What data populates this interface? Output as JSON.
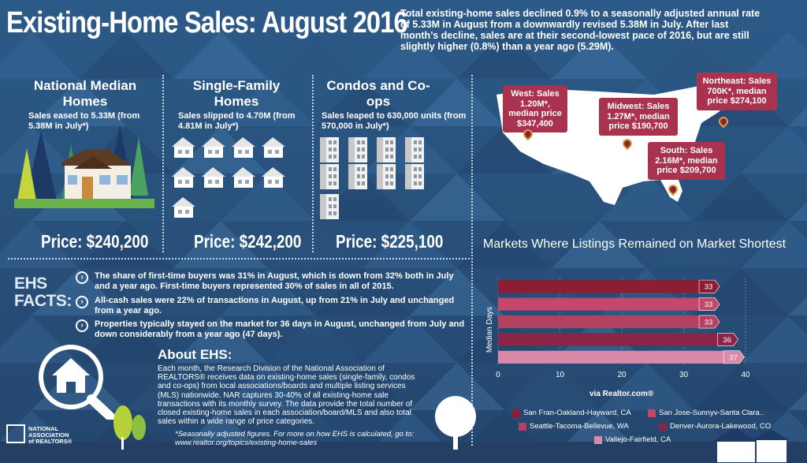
{
  "title": "Existing-Home Sales: August 2016",
  "summary": "Total existing-home sales declined 0.9% to a seasonally adjusted annual rate of 5.33M in August from a downwardly revised 5.38M in July. After last month’s decline, sales are at their second-lowest pace of 2016, but are still slightly higher (0.8%) than a year ago (5.29M).",
  "columns": [
    {
      "heading": "National Median Homes",
      "subtext": "Sales eased to 5.33M (from 5.38M in July*)",
      "price": "Price: $240,200"
    },
    {
      "heading": "Single-Family Homes",
      "subtext": "Sales slipped to 4.70M (from 4.81M in July*)",
      "price": "Price: $242,200"
    },
    {
      "heading": "Condos and Co-ops",
      "subtext": "Sales leaped to 630,000 units (from 570,000 in July*)",
      "price": "Price: $225,100"
    }
  ],
  "regions": {
    "west": "West: Sales 1.20M*, median price $347,400",
    "midwest": "Midwest: Sales 1.27M*, median price $190,700",
    "northeast": "Northeast: Sales 700K*, median price $274,100",
    "south": "South: Sales 2.16M*, median price $209,700"
  },
  "facts": {
    "title": "EHS FACTS:",
    "items": [
      "The share of first-time buyers was 31% in August, which is down from 32% both in July and a year ago. First-time buyers represented 30% of sales in all of 2015.",
      "All-cash sales were 22% of transactions in August, up from 21% in July and unchanged from a year ago.",
      "Properties typically stayed on the market for 36 days in August, unchanged from July and down considerably from a year ago (47 days)."
    ]
  },
  "about": {
    "title": "About EHS:",
    "body": "Each month, the Research Division of the National Association of REALTORS® receives data on existing-home sales (single-family, condos and co-ops) from local associations/boards and multiple listing services (MLS) nationwide. NAR captures 30-40% of all existing-home sale transactions with its monthly survey. The data provide the total number of closed existing-home sales in each association/board/MLS and also total sales within a wide range of price categories.",
    "footnote": "*Seasonally adjusted figures. For more on how EHS is calculated, go to: www.realtor.org/topics/existing-home-sales"
  },
  "nar_logo": "NATIONAL ASSOCIATION of REALTORS®",
  "colors": {
    "background": "#2a4f78",
    "bubble": "#a9324e",
    "bar_dark": "#8c1d33",
    "bar_mid": "#c4486b",
    "bar_light": "#b3415f",
    "bar_pink": "#d98aa8"
  },
  "chart_data": {
    "type": "bar",
    "orientation": "horizontal",
    "title": "Markets Where Listings Remained on Market Shortest",
    "ylabel": "Median Days",
    "xlabel": "",
    "source": "via Realtor.com®",
    "xlim": [
      0,
      40
    ],
    "xticks": [
      "0",
      "10",
      "20",
      "30",
      "40"
    ],
    "grid": true,
    "legend_position": "bottom",
    "series": [
      {
        "name": "San Fran-Oakland-Hayward, CA",
        "value": 33,
        "color": "#8c1d33"
      },
      {
        "name": "San Jose-Sunnyv-Santa Clara..",
        "value": 33,
        "color": "#c4486b"
      },
      {
        "name": "Seattle-Tacoma-Bellevue, WA",
        "value": 33,
        "color": "#b3415f"
      },
      {
        "name": "Denver-Aurora-Lakewood, CO",
        "value": 36,
        "color": "#8a2545"
      },
      {
        "name": "Vallejo-Fairfield, CA",
        "value": 37,
        "color": "#d98aa8"
      }
    ]
  }
}
